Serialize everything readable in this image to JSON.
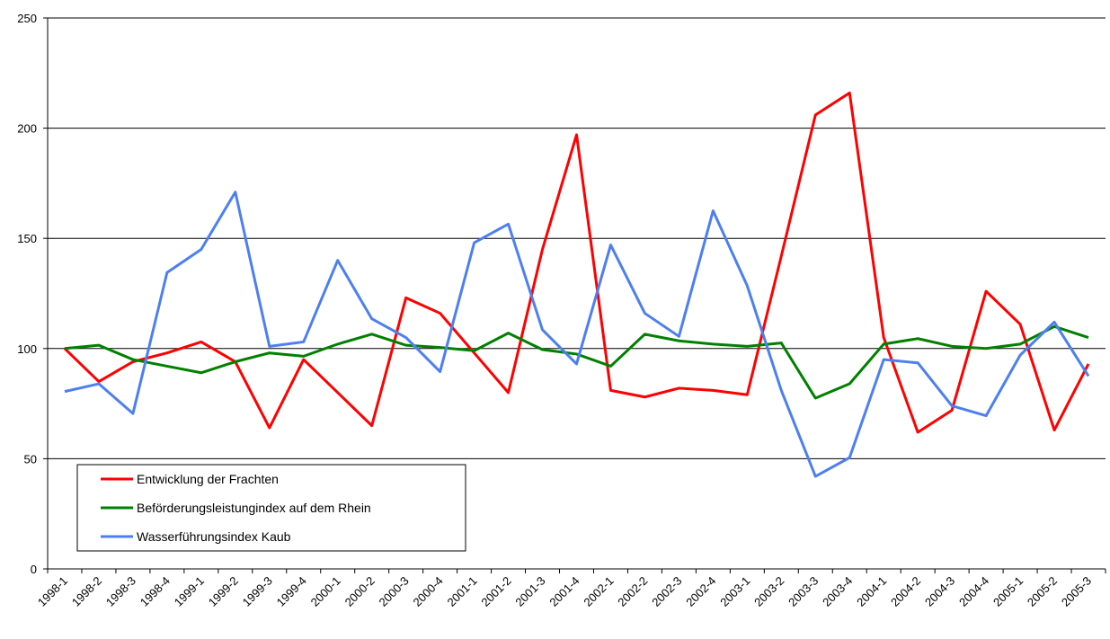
{
  "chart_data": {
    "type": "line",
    "categories": [
      "1998-1",
      "1998-2",
      "1998-3",
      "1998-4",
      "1999-1",
      "1999-2",
      "1999-3",
      "1999-4",
      "2000-1",
      "2000-2",
      "2000-3",
      "2000-4",
      "2001-1",
      "2001-2",
      "2001-3",
      "2001-4",
      "2002-1",
      "2002-2",
      "2002-3",
      "2002-4",
      "2003-1",
      "2003-2",
      "2003-3",
      "2003-4",
      "2004-1",
      "2004-2",
      "2004-3",
      "2004-4",
      "2005-1",
      "2005-2",
      "2005-3"
    ],
    "series": [
      {
        "name": "Entwicklung der Frachten",
        "color": "#ff0000",
        "values": [
          100,
          85,
          94,
          98,
          103,
          94,
          64,
          95,
          80,
          65,
          123,
          116,
          98,
          80,
          145,
          197,
          81,
          78,
          82,
          81,
          79,
          142,
          206,
          216,
          105,
          62,
          72,
          126,
          111,
          63,
          93
        ]
      },
      {
        "name": "Beförderungsleistungindex auf dem Rhein",
        "color": "#008000",
        "values": [
          100,
          101.5,
          95,
          92,
          89,
          94,
          98,
          96.5,
          102,
          106.5,
          101.5,
          100.5,
          99,
          107,
          99.5,
          97.5,
          92,
          106.5,
          103.5,
          102,
          101,
          102.5,
          77.5,
          84,
          102,
          104.5,
          101,
          100,
          102,
          110,
          105
        ]
      },
      {
        "name": "Wasserführungsindex Kaub",
        "color": "#4d7ff0",
        "values": [
          80.5,
          84,
          70.5,
          134.5,
          145,
          171,
          101,
          103,
          140,
          113.5,
          105,
          89.5,
          148,
          156.5,
          108.5,
          93,
          147,
          116,
          105.5,
          162.5,
          128.5,
          81,
          42,
          50.5,
          95,
          93.5,
          74,
          69.5,
          97,
          112,
          87.5
        ]
      }
    ],
    "ylim": [
      0,
      250
    ],
    "yticks": [
      0,
      50,
      100,
      150,
      200,
      250
    ],
    "grid": true
  }
}
